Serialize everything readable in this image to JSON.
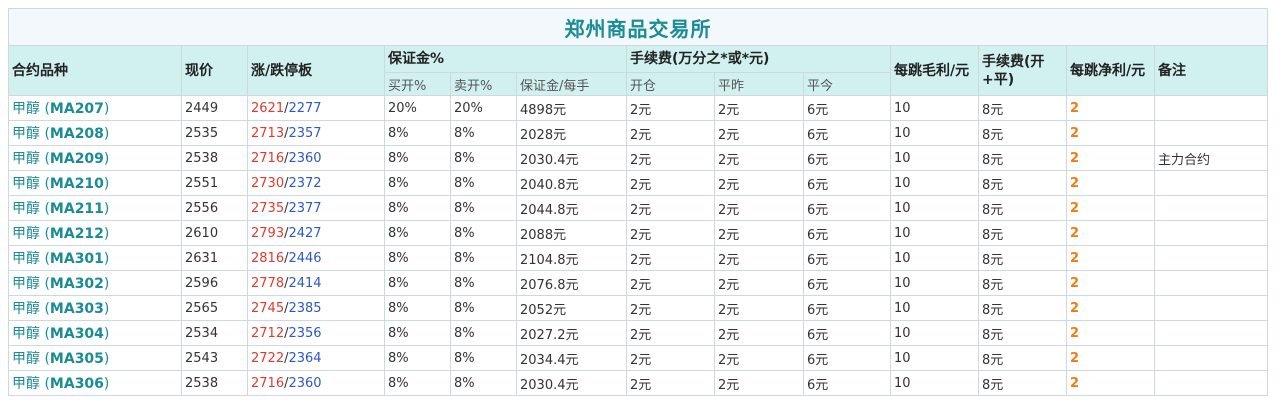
{
  "title": "郑州商品交易所",
  "headers": {
    "contract": "合约品种",
    "price": "现价",
    "limit": "涨/跌停板",
    "margin": "保证金%",
    "margin_sub": [
      "买开%",
      "卖开%",
      "保证金/每手"
    ],
    "fee": "手续费(万分之*或*元)",
    "fee_sub": [
      "开仓",
      "平昨",
      "平今"
    ],
    "gross": "每跳毛利/元",
    "fee_total": "手续费(开+平)",
    "net": "每跳净利/元",
    "note": "备注"
  },
  "rows": [
    {
      "name": "甲醇",
      "code": "MA207",
      "price": "2449",
      "up": "2621",
      "down": "2277",
      "buy": "20%",
      "sell": "20%",
      "margin": "4898元",
      "open": "2元",
      "close_y": "2元",
      "close_t": "6元",
      "gross": "10",
      "fee": "8元",
      "net": "2",
      "note": ""
    },
    {
      "name": "甲醇",
      "code": "MA208",
      "price": "2535",
      "up": "2713",
      "down": "2357",
      "buy": "8%",
      "sell": "8%",
      "margin": "2028元",
      "open": "2元",
      "close_y": "2元",
      "close_t": "6元",
      "gross": "10",
      "fee": "8元",
      "net": "2",
      "note": ""
    },
    {
      "name": "甲醇",
      "code": "MA209",
      "price": "2538",
      "up": "2716",
      "down": "2360",
      "buy": "8%",
      "sell": "8%",
      "margin": "2030.4元",
      "open": "2元",
      "close_y": "2元",
      "close_t": "6元",
      "gross": "10",
      "fee": "8元",
      "net": "2",
      "note": "主力合约"
    },
    {
      "name": "甲醇",
      "code": "MA210",
      "price": "2551",
      "up": "2730",
      "down": "2372",
      "buy": "8%",
      "sell": "8%",
      "margin": "2040.8元",
      "open": "2元",
      "close_y": "2元",
      "close_t": "6元",
      "gross": "10",
      "fee": "8元",
      "net": "2",
      "note": ""
    },
    {
      "name": "甲醇",
      "code": "MA211",
      "price": "2556",
      "up": "2735",
      "down": "2377",
      "buy": "8%",
      "sell": "8%",
      "margin": "2044.8元",
      "open": "2元",
      "close_y": "2元",
      "close_t": "6元",
      "gross": "10",
      "fee": "8元",
      "net": "2",
      "note": ""
    },
    {
      "name": "甲醇",
      "code": "MA212",
      "price": "2610",
      "up": "2793",
      "down": "2427",
      "buy": "8%",
      "sell": "8%",
      "margin": "2088元",
      "open": "2元",
      "close_y": "2元",
      "close_t": "6元",
      "gross": "10",
      "fee": "8元",
      "net": "2",
      "note": ""
    },
    {
      "name": "甲醇",
      "code": "MA301",
      "price": "2631",
      "up": "2816",
      "down": "2446",
      "buy": "8%",
      "sell": "8%",
      "margin": "2104.8元",
      "open": "2元",
      "close_y": "2元",
      "close_t": "6元",
      "gross": "10",
      "fee": "8元",
      "net": "2",
      "note": ""
    },
    {
      "name": "甲醇",
      "code": "MA302",
      "price": "2596",
      "up": "2778",
      "down": "2414",
      "buy": "8%",
      "sell": "8%",
      "margin": "2076.8元",
      "open": "2元",
      "close_y": "2元",
      "close_t": "6元",
      "gross": "10",
      "fee": "8元",
      "net": "2",
      "note": ""
    },
    {
      "name": "甲醇",
      "code": "MA303",
      "price": "2565",
      "up": "2745",
      "down": "2385",
      "buy": "8%",
      "sell": "8%",
      "margin": "2052元",
      "open": "2元",
      "close_y": "2元",
      "close_t": "6元",
      "gross": "10",
      "fee": "8元",
      "net": "2",
      "note": ""
    },
    {
      "name": "甲醇",
      "code": "MA304",
      "price": "2534",
      "up": "2712",
      "down": "2356",
      "buy": "8%",
      "sell": "8%",
      "margin": "2027.2元",
      "open": "2元",
      "close_y": "2元",
      "close_t": "6元",
      "gross": "10",
      "fee": "8元",
      "net": "2",
      "note": ""
    },
    {
      "name": "甲醇",
      "code": "MA305",
      "price": "2543",
      "up": "2722",
      "down": "2364",
      "buy": "8%",
      "sell": "8%",
      "margin": "2034.4元",
      "open": "2元",
      "close_y": "2元",
      "close_t": "6元",
      "gross": "10",
      "fee": "8元",
      "net": "2",
      "note": ""
    },
    {
      "name": "甲醇",
      "code": "MA306",
      "price": "2538",
      "up": "2716",
      "down": "2360",
      "buy": "8%",
      "sell": "8%",
      "margin": "2030.4元",
      "open": "2元",
      "close_y": "2元",
      "close_t": "6元",
      "gross": "10",
      "fee": "8元",
      "net": "2",
      "note": ""
    }
  ],
  "colors": {
    "title": "#1a8c96",
    "header_bg": "#d1f1f1",
    "limit_up": "#e03a2c",
    "limit_down": "#2c58c8",
    "net_profit": "#f07c13",
    "contract_link": "#1a8c96"
  }
}
